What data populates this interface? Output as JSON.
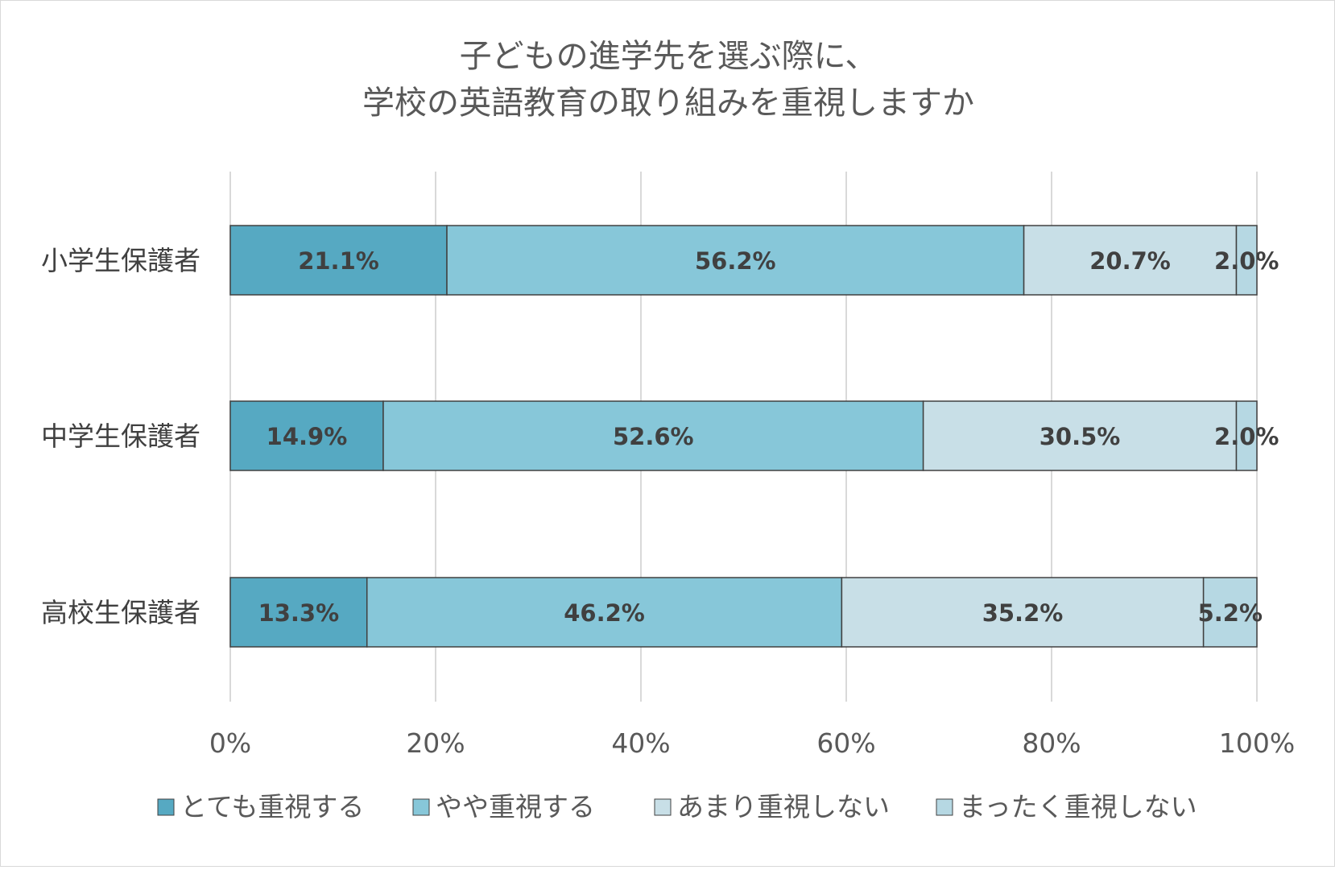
{
  "chart_data": {
    "type": "bar",
    "orientation": "horizontal",
    "stacked": "percent",
    "title_lines": [
      "子どもの進学先を選ぶ際に、",
      "学校の英語教育の取り組みを重視しますか"
    ],
    "categories": [
      "小学生保護者",
      "中学生保護者",
      "高校生保護者"
    ],
    "series": [
      {
        "name": "とても重視する",
        "color": "#56a9c2",
        "values": [
          21.1,
          14.9,
          13.3
        ],
        "labels": [
          "21.1%",
          "14.9%",
          "13.3%"
        ]
      },
      {
        "name": "やや重視する",
        "color": "#87c7d9",
        "values": [
          56.2,
          52.6,
          46.2
        ],
        "labels": [
          "56.2%",
          "52.6%",
          "46.2%"
        ]
      },
      {
        "name": "あまり重視しない",
        "color": "#c8dfe7",
        "values": [
          20.7,
          30.5,
          35.2
        ],
        "labels": [
          "20.7%",
          "30.5%",
          "35.2%"
        ]
      },
      {
        "name": "まったく重視しない",
        "color": "#b6d8e3",
        "values": [
          2.0,
          2.0,
          5.2
        ],
        "labels": [
          "2.0%",
          "2.0%",
          "5.2%"
        ]
      }
    ],
    "x_ticks": [
      "0%",
      "20%",
      "40%",
      "60%",
      "80%",
      "100%"
    ],
    "xlim": [
      0,
      100
    ],
    "grid": true,
    "legend_position": "bottom"
  }
}
